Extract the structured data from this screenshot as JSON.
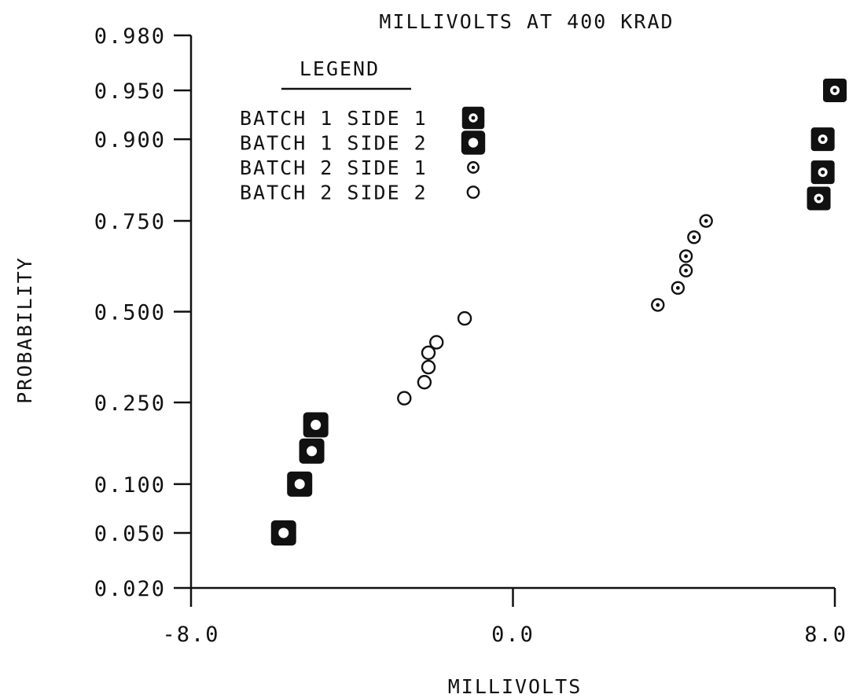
{
  "chart_data": {
    "type": "scatter",
    "title": "MILLIVOLTS AT 400 KRAD",
    "xlabel": "MILLIVOLTS",
    "ylabel": "PROBABILITY",
    "xlim": [
      -8.0,
      8.0
    ],
    "x_ticks": [
      -8.0,
      0.0,
      8.0
    ],
    "x_tick_labels": [
      "-8.0",
      "0.0",
      "8.0"
    ],
    "y_scale": "normal-probability",
    "y_ticks": [
      0.02,
      0.05,
      0.1,
      0.25,
      0.5,
      0.75,
      0.9,
      0.95,
      0.98
    ],
    "y_tick_labels": [
      "0.020",
      "0.050",
      "0.100",
      "0.250",
      "0.500",
      "0.750",
      "0.900",
      "0.950",
      "0.980"
    ],
    "legend_title": "LEGEND",
    "legend_position": "top-left",
    "grid": false,
    "series": [
      {
        "name": "BATCH 1 SIDE 1",
        "marker": "filled-square-ringed",
        "points": [
          [
            7.6,
            0.8
          ],
          [
            7.7,
            0.85
          ],
          [
            7.7,
            0.9
          ],
          [
            8.0,
            0.95
          ]
        ]
      },
      {
        "name": "BATCH 1 SIDE 2",
        "marker": "filled-square-dot",
        "points": [
          [
            -5.7,
            0.05
          ],
          [
            -5.3,
            0.1
          ],
          [
            -5.0,
            0.15
          ],
          [
            -4.9,
            0.2
          ]
        ]
      },
      {
        "name": "BATCH 2 SIDE 1",
        "marker": "circle-dot",
        "points": [
          [
            3.6,
            0.52
          ],
          [
            4.1,
            0.57
          ],
          [
            4.3,
            0.62
          ],
          [
            4.3,
            0.66
          ],
          [
            4.5,
            0.71
          ],
          [
            4.8,
            0.75
          ]
        ]
      },
      {
        "name": "BATCH 2 SIDE 2",
        "marker": "open-circle",
        "points": [
          [
            -2.7,
            0.26
          ],
          [
            -2.2,
            0.3
          ],
          [
            -2.1,
            0.34
          ],
          [
            -2.1,
            0.38
          ],
          [
            -1.9,
            0.41
          ],
          [
            -1.2,
            0.48
          ]
        ]
      }
    ]
  }
}
